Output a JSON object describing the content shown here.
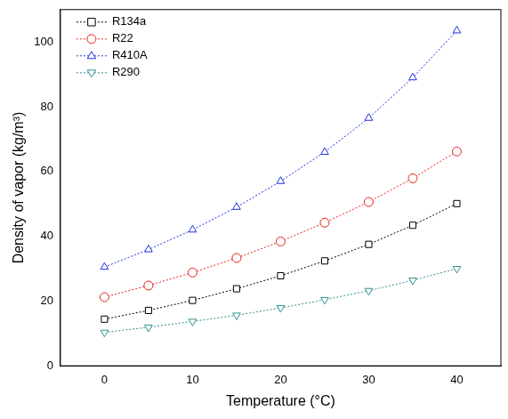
{
  "chart_data": {
    "type": "line",
    "x_label": "Temperature (°C)",
    "y_label": "Density of vapor (kg/m³)",
    "x": [
      0,
      5,
      10,
      15,
      20,
      25,
      30,
      35,
      40
    ],
    "series": [
      {
        "name": "R134a",
        "color": "#000000",
        "marker": "square",
        "line_style": "dotted",
        "values": [
          14.4,
          17.1,
          20.2,
          23.8,
          27.8,
          32.4,
          37.5,
          43.4,
          50.1
        ]
      },
      {
        "name": "R22",
        "color": "#e8211c",
        "marker": "circle",
        "line_style": "dotted",
        "values": [
          21.2,
          24.8,
          28.8,
          33.3,
          38.4,
          44.2,
          50.6,
          57.9,
          66.2
        ]
      },
      {
        "name": "R410A",
        "color": "#1f2fe0",
        "marker": "triangle",
        "line_style": "dotted",
        "values": [
          30.5,
          35.9,
          42.0,
          49.0,
          57.0,
          66.0,
          76.5,
          89.0,
          103.5
        ]
      },
      {
        "name": "R290",
        "color": "#2f8f8f",
        "marker": "triangle-down",
        "line_style": "dotted",
        "values": [
          10.3,
          11.9,
          13.7,
          15.6,
          17.9,
          20.4,
          23.2,
          26.4,
          30.0
        ]
      }
    ],
    "xlim": [
      -5,
      45
    ],
    "ylim": [
      0,
      110
    ],
    "xticks": [
      0,
      10,
      20,
      30,
      40
    ],
    "yticks": [
      0,
      20,
      40,
      60,
      80,
      100
    ],
    "grid": false,
    "legend": "upper left"
  }
}
